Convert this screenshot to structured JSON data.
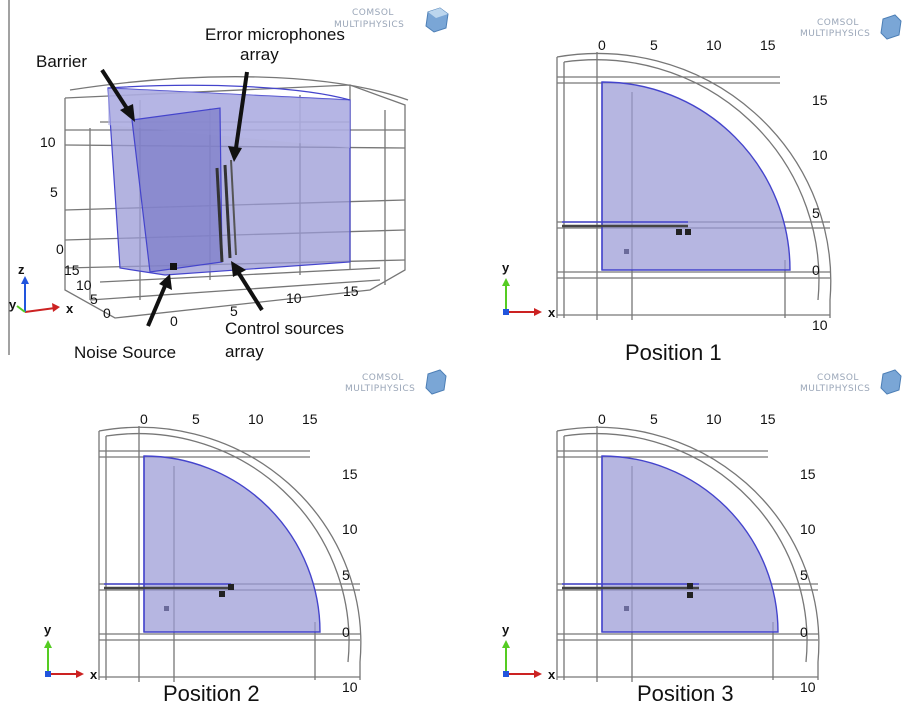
{
  "logo": {
    "line1": "COMSOL",
    "line2": "MULTIPHYSICS"
  },
  "colors": {
    "shade": "#9a9ad6",
    "edge": "#4444cc",
    "frame": "#777777",
    "x_axis": "#cc2222",
    "y_axis": "#55cc22",
    "z_axis": "#2255dd"
  },
  "panel3d": {
    "annotations": {
      "barrier": "Barrier",
      "error_mics_1": "Error microphones",
      "error_mics_2": "array",
      "control_1": "Control sources",
      "control_2": "array",
      "noise": "Noise Source"
    },
    "z_ticks": [
      "0",
      "5",
      "10"
    ],
    "y_ticks": [
      "15",
      "10",
      "5",
      "0"
    ],
    "x_ticks": [
      "0",
      "5",
      "10",
      "15"
    ],
    "axes": {
      "x": "x",
      "y": "y",
      "z": "z"
    }
  },
  "panels": [
    {
      "caption": "Position 1",
      "x_ticks": [
        "0",
        "5",
        "10",
        "15"
      ],
      "y_ticks": [
        "15",
        "10",
        "5",
        "0"
      ],
      "corner": "10",
      "axes": {
        "x": "x",
        "y": "y"
      }
    },
    {
      "caption": "Position 2",
      "x_ticks": [
        "0",
        "5",
        "10",
        "15"
      ],
      "y_ticks": [
        "15",
        "10",
        "5",
        "0"
      ],
      "corner": "10",
      "axes": {
        "x": "x",
        "y": "y"
      }
    },
    {
      "caption": "Position 3",
      "x_ticks": [
        "0",
        "5",
        "10",
        "15"
      ],
      "y_ticks": [
        "15",
        "10",
        "5",
        "0"
      ],
      "corner": "10",
      "axes": {
        "x": "x",
        "y": "y"
      }
    }
  ]
}
